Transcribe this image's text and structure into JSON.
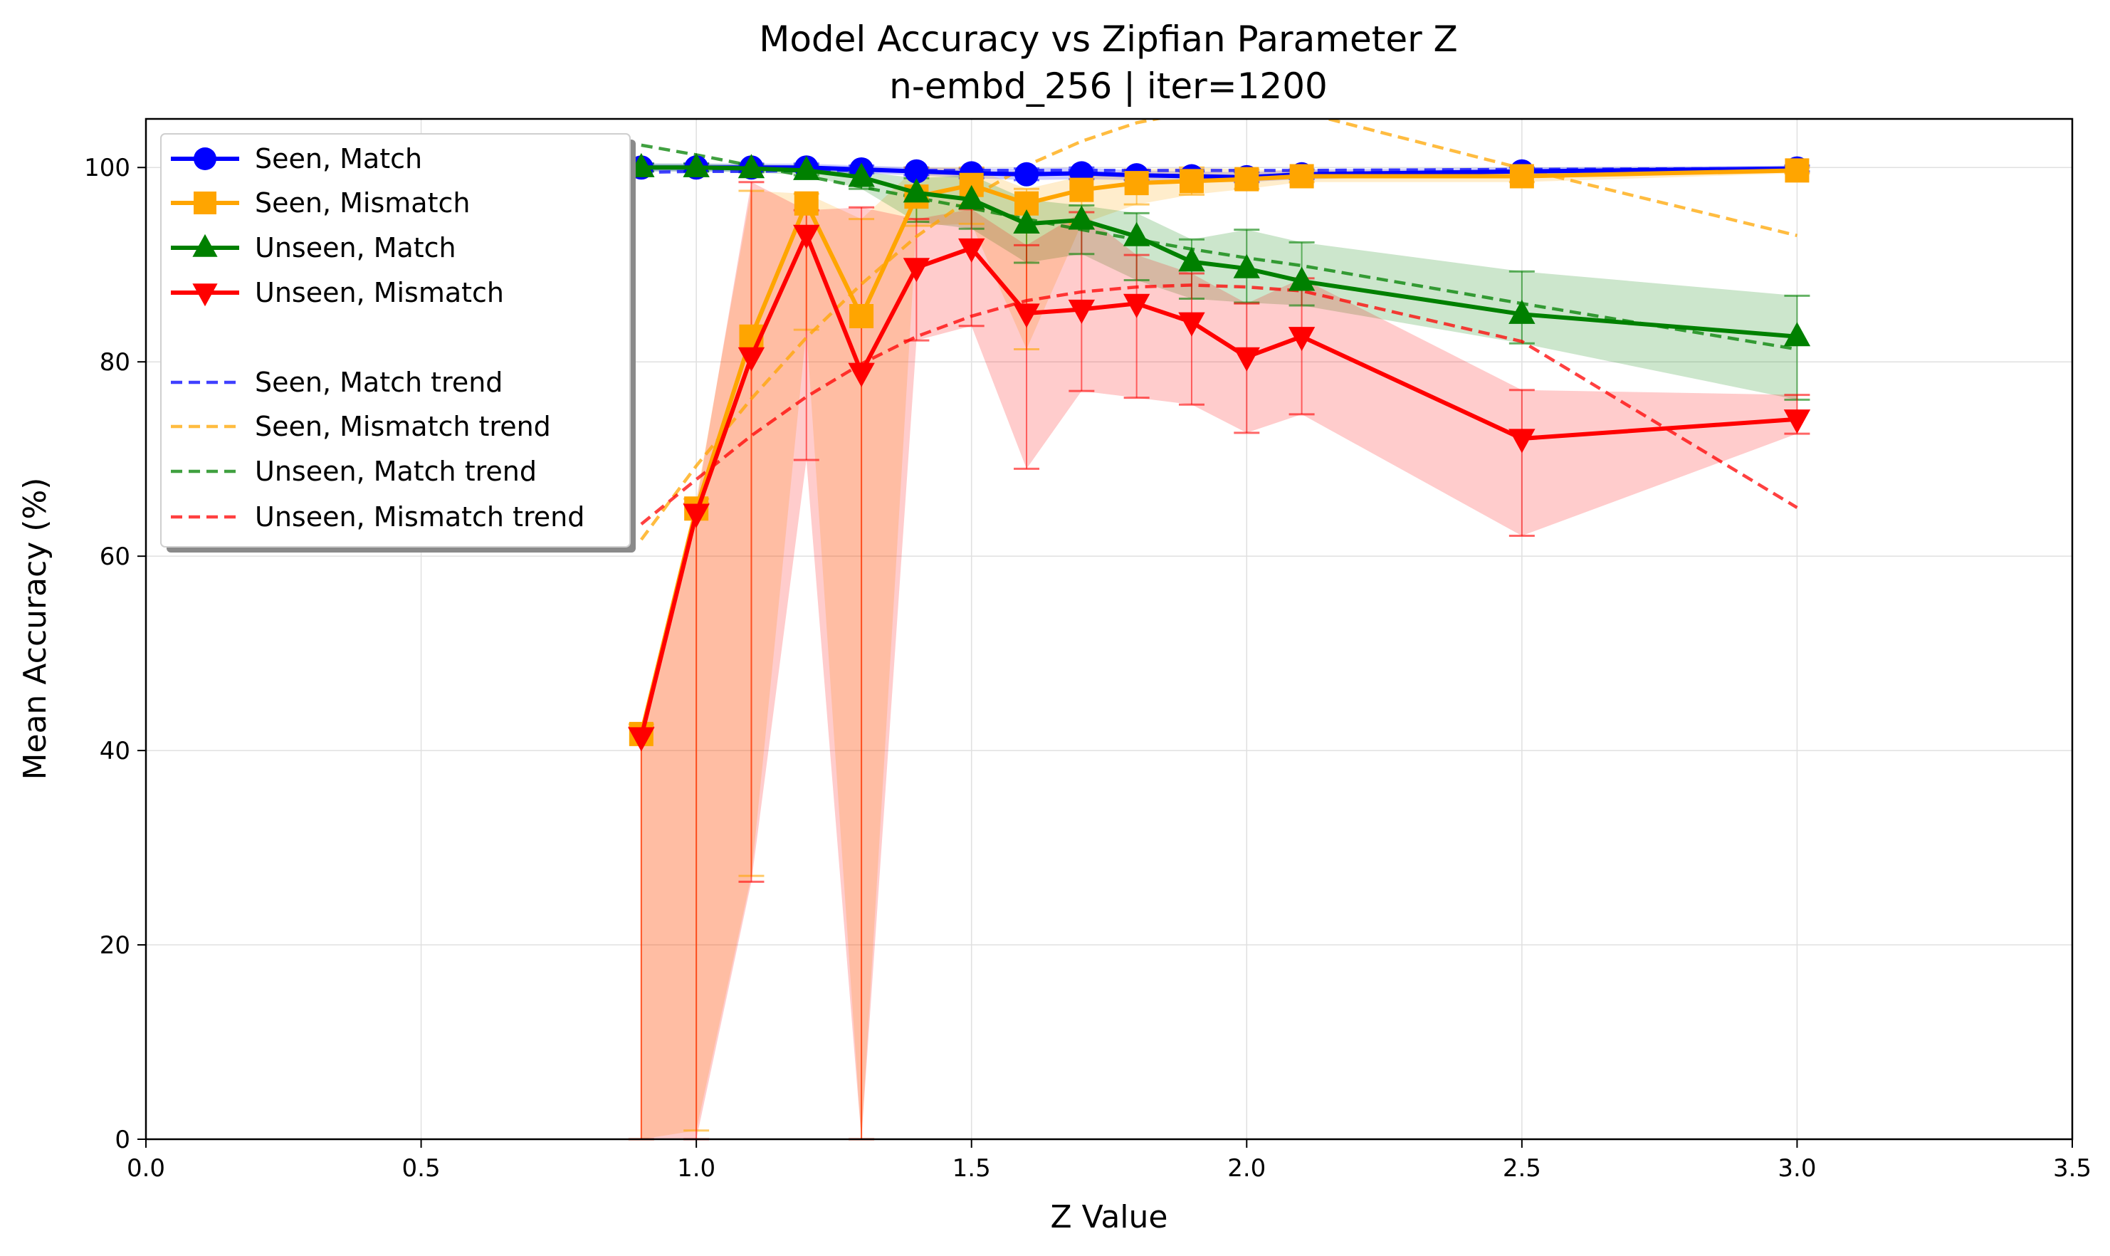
{
  "chart_data": {
    "type": "line",
    "title": "Model Accuracy vs Zipfian Parameter Z",
    "subtitle": "n-embd_256 | iter=1200",
    "xlabel": "Z Value",
    "ylabel": "Mean Accuracy (%)",
    "xlim": [
      0.0,
      3.5
    ],
    "ylim": [
      0,
      105
    ],
    "xticks": [
      "0.0",
      "0.5",
      "1.0",
      "1.5",
      "2.0",
      "2.5",
      "3.0",
      "3.5"
    ],
    "yticks": [
      "0",
      "20",
      "40",
      "60",
      "80",
      "100"
    ],
    "grid": true,
    "legend_position": "upper-left",
    "x": [
      0.9,
      1.0,
      1.1,
      1.2,
      1.3,
      1.4,
      1.5,
      1.6,
      1.7,
      1.8,
      1.9,
      2.0,
      2.1,
      2.5,
      3.0
    ],
    "series": [
      {
        "name": "Seen, Match",
        "color": "#0000ff",
        "marker": "circle",
        "values": [
          100,
          100,
          100,
          100,
          99.8,
          99.6,
          99.4,
          99.3,
          99.4,
          99.2,
          99.1,
          99.0,
          99.3,
          99.6,
          99.9
        ],
        "err_low": [
          0.4,
          0.4,
          0.4,
          0.4,
          0.4,
          0.4,
          0.5,
          0.6,
          0.6,
          0.5,
          0.5,
          0.5,
          0.5,
          0.4,
          0.3
        ],
        "err_high": [
          0.4,
          0.4,
          0.4,
          0.4,
          0.4,
          0.4,
          0.5,
          0.6,
          0.6,
          0.5,
          0.5,
          0.5,
          0.5,
          0.4,
          0.3
        ]
      },
      {
        "name": "Seen, Mismatch",
        "color": "#ffa500",
        "marker": "square",
        "values": [
          41.7,
          64.9,
          82.6,
          96.3,
          84.7,
          97.0,
          98.2,
          96.3,
          97.7,
          98.4,
          98.6,
          98.8,
          99.1,
          99.1,
          99.7
        ],
        "err_low": [
          41.7,
          64.0,
          55.5,
          13.0,
          84.7,
          3.0,
          4.0,
          15.0,
          3.5,
          2.2,
          1.4,
          1.0,
          0.6,
          0.6,
          0.3
        ],
        "err_high": [
          1.0,
          1.0,
          15.0,
          1.0,
          10.0,
          3.0,
          1.8,
          1.5,
          1.4,
          1.4,
          1.4,
          1.0,
          0.6,
          0.6,
          0.3
        ]
      },
      {
        "name": "Unseen, Match",
        "color": "#008000",
        "marker": "triangle-up",
        "values": [
          100,
          100,
          99.9,
          99.7,
          99.0,
          97.4,
          96.7,
          94.2,
          94.6,
          92.9,
          90.3,
          89.6,
          88.3,
          84.9,
          82.6
        ],
        "err_low": [
          0.4,
          0.4,
          0.4,
          0.5,
          1.2,
          3.0,
          3.0,
          4.0,
          3.5,
          4.5,
          3.8,
          3.5,
          2.5,
          3.0,
          6.5
        ],
        "err_high": [
          0.4,
          0.4,
          0.4,
          0.5,
          0.6,
          1.5,
          2.5,
          2.5,
          1.5,
          2.4,
          2.3,
          4.0,
          4.0,
          4.4,
          4.2
        ]
      },
      {
        "name": "Unseen, Mismatch",
        "color": "#ff0000",
        "marker": "triangle-down",
        "values": [
          41.4,
          64.4,
          80.5,
          93.1,
          78.9,
          89.7,
          91.7,
          85.0,
          85.4,
          86.0,
          84.1,
          80.5,
          82.6,
          72.1,
          74.1
        ],
        "err_low": [
          41.4,
          64.4,
          54.0,
          23.2,
          78.9,
          7.5,
          8.0,
          16.0,
          8.4,
          9.7,
          8.5,
          7.8,
          8.0,
          10.0,
          1.5
        ],
        "err_high": [
          1.0,
          1.0,
          18.0,
          2.5,
          17.0,
          5.0,
          4.0,
          7.0,
          10.0,
          5.0,
          5.0,
          5.5,
          6.0,
          5.0,
          2.5
        ]
      }
    ],
    "trends": [
      {
        "name": "Seen, Match trend",
        "color": "#0000ff",
        "values": [
          99.5,
          99.6,
          99.6,
          99.7,
          99.7,
          99.7,
          99.7,
          99.7,
          99.7,
          99.7,
          99.7,
          99.7,
          99.7,
          99.8,
          99.9
        ]
      },
      {
        "name": "Seen, Mismatch trend",
        "color": "#ffa500",
        "values": [
          61.7,
          69.3,
          76.2,
          82.5,
          88.0,
          92.9,
          96.9,
          100.2,
          102.7,
          104.6,
          105.7,
          106.0,
          105.7,
          99.9,
          93.0
        ]
      },
      {
        "name": "Unseen, Match trend",
        "color": "#008000",
        "values": [
          102.3,
          101.3,
          100.2,
          99.1,
          98.0,
          96.9,
          95.8,
          94.7,
          93.6,
          92.6,
          91.6,
          90.7,
          89.9,
          86.0,
          81.3
        ]
      },
      {
        "name": "Unseen, Mismatch trend",
        "color": "#ff0000",
        "values": [
          63.3,
          67.9,
          72.4,
          76.4,
          79.8,
          82.6,
          84.7,
          86.3,
          87.2,
          87.7,
          87.9,
          87.7,
          87.3,
          82.1,
          65.0
        ]
      }
    ]
  }
}
